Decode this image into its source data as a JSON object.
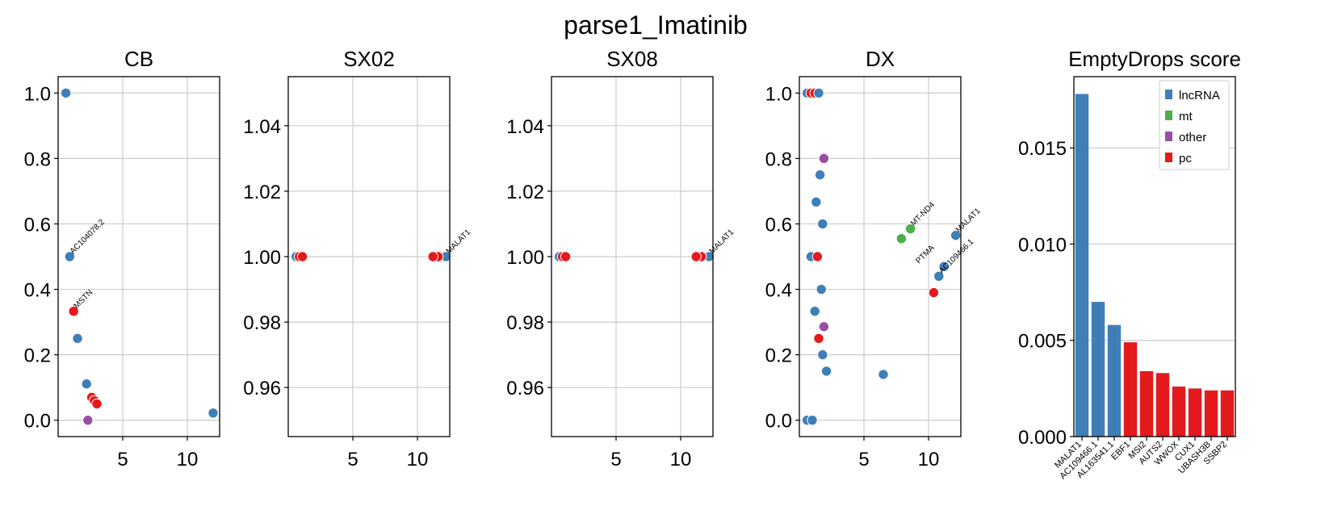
{
  "figure_title": "parse1_Imatinib",
  "colors": {
    "lncRNA": "#3f7fb8",
    "mt": "#4daf4a",
    "other": "#984ea3",
    "pc": "#e41a1c"
  },
  "chart_data": [
    {
      "type": "scatter",
      "title": "CB",
      "xlim": [
        0,
        12.5
      ],
      "ylim": [
        -0.05,
        1.05
      ],
      "xticks": [
        5,
        10
      ],
      "xtick_labels": [
        "5",
        "10"
      ],
      "yticks": [
        0.0,
        0.2,
        0.4,
        0.6,
        0.8,
        1.0
      ],
      "ytick_labels": [
        "0.0",
        "0.2",
        "0.4",
        "0.6",
        "0.8",
        "1.0"
      ],
      "grid": true,
      "points": [
        {
          "x": 0.6,
          "y": 1.0,
          "c": "lncRNA"
        },
        {
          "x": 0.9,
          "y": 0.5,
          "c": "lncRNA"
        },
        {
          "x": 1.2,
          "y": 0.333,
          "c": "pc"
        },
        {
          "x": 1.5,
          "y": 0.25,
          "c": "lncRNA"
        },
        {
          "x": 2.2,
          "y": 0.111,
          "c": "lncRNA"
        },
        {
          "x": 2.6,
          "y": 0.07,
          "c": "pc"
        },
        {
          "x": 2.8,
          "y": 0.06,
          "c": "pc"
        },
        {
          "x": 3.0,
          "y": 0.05,
          "c": "pc"
        },
        {
          "x": 2.3,
          "y": 0.0,
          "c": "other"
        },
        {
          "x": 12.0,
          "y": 0.022,
          "c": "lncRNA"
        }
      ],
      "labels": [
        {
          "x": 0.9,
          "y": 0.5,
          "text": "AC104078.2"
        },
        {
          "x": 1.2,
          "y": 0.333,
          "text": "MSTN"
        }
      ]
    },
    {
      "type": "scatter",
      "title": "SX02",
      "xlim": [
        0,
        12.5
      ],
      "ylim": [
        0.945,
        1.055
      ],
      "xticks": [
        5,
        10
      ],
      "xtick_labels": [
        "5",
        "10"
      ],
      "yticks": [
        0.96,
        0.98,
        1.0,
        1.02,
        1.04
      ],
      "ytick_labels": [
        "0.96",
        "0.98",
        "1.00",
        "1.02",
        "1.04"
      ],
      "grid": true,
      "points": [
        {
          "x": 0.6,
          "y": 1.0,
          "c": "lncRNA"
        },
        {
          "x": 0.85,
          "y": 1.0,
          "c": "pc"
        },
        {
          "x": 1.1,
          "y": 1.0,
          "c": "pc"
        },
        {
          "x": 12.2,
          "y": 1.0,
          "c": "lncRNA"
        },
        {
          "x": 11.6,
          "y": 1.0,
          "c": "pc"
        },
        {
          "x": 11.2,
          "y": 1.0,
          "c": "pc"
        }
      ],
      "labels": [
        {
          "x": 12.2,
          "y": 1.0,
          "text": "MALAT1"
        }
      ]
    },
    {
      "type": "scatter",
      "title": "SX08",
      "xlim": [
        0,
        12.5
      ],
      "ylim": [
        0.945,
        1.055
      ],
      "xticks": [
        5,
        10
      ],
      "xtick_labels": [
        "5",
        "10"
      ],
      "yticks": [
        0.96,
        0.98,
        1.0,
        1.02,
        1.04
      ],
      "ytick_labels": [
        "0.96",
        "0.98",
        "1.00",
        "1.02",
        "1.04"
      ],
      "grid": true,
      "points": [
        {
          "x": 0.6,
          "y": 1.0,
          "c": "lncRNA"
        },
        {
          "x": 0.85,
          "y": 1.0,
          "c": "pc"
        },
        {
          "x": 1.1,
          "y": 1.0,
          "c": "pc"
        },
        {
          "x": 12.2,
          "y": 1.0,
          "c": "lncRNA"
        },
        {
          "x": 11.6,
          "y": 1.0,
          "c": "pc"
        },
        {
          "x": 11.2,
          "y": 1.0,
          "c": "pc"
        }
      ],
      "labels": [
        {
          "x": 12.2,
          "y": 1.0,
          "text": "MALAT1"
        }
      ]
    },
    {
      "type": "scatter",
      "title": "DX",
      "xlim": [
        0,
        12.5
      ],
      "ylim": [
        -0.05,
        1.05
      ],
      "xticks": [
        5,
        10
      ],
      "xtick_labels": [
        "5",
        "10"
      ],
      "yticks": [
        0.0,
        0.2,
        0.4,
        0.6,
        0.8,
        1.0
      ],
      "ytick_labels": [
        "0.0",
        "0.2",
        "0.4",
        "0.6",
        "0.8",
        "1.0"
      ],
      "grid": true,
      "points": [
        {
          "x": 0.6,
          "y": 1.0,
          "c": "lncRNA"
        },
        {
          "x": 0.9,
          "y": 1.0,
          "c": "pc"
        },
        {
          "x": 1.2,
          "y": 1.0,
          "c": "pc"
        },
        {
          "x": 1.5,
          "y": 1.0,
          "c": "lncRNA"
        },
        {
          "x": 1.9,
          "y": 0.8,
          "c": "other"
        },
        {
          "x": 1.6,
          "y": 0.75,
          "c": "lncRNA"
        },
        {
          "x": 1.3,
          "y": 0.667,
          "c": "lncRNA"
        },
        {
          "x": 1.8,
          "y": 0.6,
          "c": "lncRNA"
        },
        {
          "x": 0.9,
          "y": 0.5,
          "c": "lncRNA"
        },
        {
          "x": 1.4,
          "y": 0.5,
          "c": "pc"
        },
        {
          "x": 1.7,
          "y": 0.4,
          "c": "lncRNA"
        },
        {
          "x": 1.2,
          "y": 0.333,
          "c": "lncRNA"
        },
        {
          "x": 1.9,
          "y": 0.286,
          "c": "other"
        },
        {
          "x": 1.5,
          "y": 0.25,
          "c": "pc"
        },
        {
          "x": 1.8,
          "y": 0.2,
          "c": "lncRNA"
        },
        {
          "x": 2.1,
          "y": 0.15,
          "c": "lncRNA"
        },
        {
          "x": 6.5,
          "y": 0.14,
          "c": "lncRNA"
        },
        {
          "x": 0.6,
          "y": 0.0,
          "c": "lncRNA"
        },
        {
          "x": 1.0,
          "y": 0.0,
          "c": "lncRNA"
        },
        {
          "x": 8.6,
          "y": 0.585,
          "c": "mt"
        },
        {
          "x": 7.9,
          "y": 0.555,
          "c": "mt"
        },
        {
          "x": 12.1,
          "y": 0.565,
          "c": "lncRNA"
        },
        {
          "x": 11.2,
          "y": 0.47,
          "c": "lncRNA"
        },
        {
          "x": 10.8,
          "y": 0.44,
          "c": "lncRNA"
        },
        {
          "x": 10.4,
          "y": 0.39,
          "c": "pc"
        }
      ],
      "labels": [
        {
          "x": 12.1,
          "y": 0.565,
          "text": "MALAT1"
        },
        {
          "x": 10.8,
          "y": 0.44,
          "text": "AC109466.1"
        },
        {
          "x": 8.6,
          "y": 0.585,
          "text": "MT-ND4"
        },
        {
          "x": 9.0,
          "y": 0.47,
          "text": "PTMA"
        }
      ]
    },
    {
      "type": "bar",
      "title": "EmptyDrops score",
      "categories": [
        "MALAT1",
        "AC109466.1",
        "AL163541.1",
        "EBF1",
        "MSI2",
        "AUTS2",
        "WWOX",
        "CUX1",
        "UBASH3B",
        "SSBP2"
      ],
      "values": [
        0.0178,
        0.007,
        0.0058,
        0.0049,
        0.0034,
        0.0033,
        0.0026,
        0.0025,
        0.0024,
        0.0024
      ],
      "classes": [
        "lncRNA",
        "lncRNA",
        "lncRNA",
        "pc",
        "pc",
        "pc",
        "pc",
        "pc",
        "pc",
        "pc"
      ],
      "ylim": [
        0,
        0.0187
      ],
      "yticks": [
        0.0,
        0.005,
        0.01,
        0.015
      ],
      "ytick_labels": [
        "0.000",
        "0.005",
        "0.010",
        "0.015"
      ],
      "grid": true,
      "legend": {
        "placement": "top-right",
        "entries": [
          "lncRNA",
          "mt",
          "other",
          "pc"
        ]
      }
    }
  ]
}
